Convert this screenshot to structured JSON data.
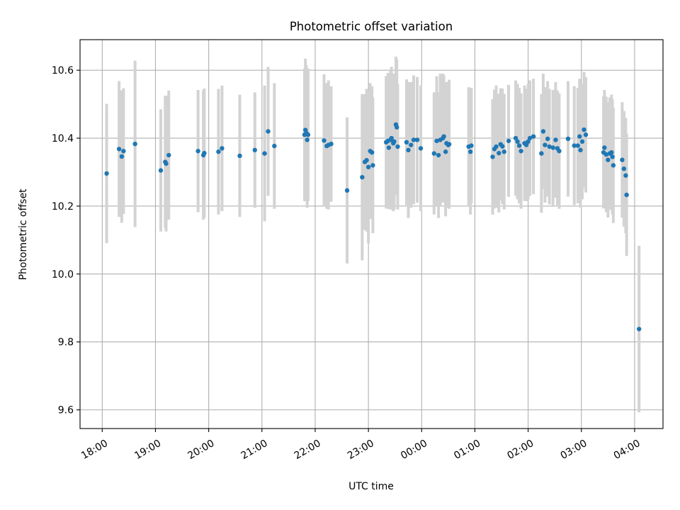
{
  "chart_data": {
    "type": "scatter",
    "title": "Photometric offset variation",
    "xlabel": "UTC time",
    "ylabel": "Photometric offset",
    "x_ticks": [
      "18:00",
      "19:00",
      "20:00",
      "21:00",
      "22:00",
      "23:00",
      "00:00",
      "01:00",
      "02:00",
      "03:00",
      "04:00"
    ],
    "y_ticks": [
      "9.6",
      "9.8",
      "10.0",
      "10.2",
      "10.4",
      "10.6"
    ],
    "xlim": [
      "17:35",
      "04:32"
    ],
    "ylim": [
      9.545,
      10.69
    ],
    "grid": true,
    "colors": {
      "points": "#1f77b4",
      "errorbars": "#d3d3d3",
      "grid": "#b0b0b0"
    },
    "series": [
      {
        "points": [
          {
            "t": "18:05",
            "y": 10.296,
            "err": 0.205
          },
          {
            "t": "18:19",
            "y": 10.368,
            "err": 0.2
          },
          {
            "t": "18:22",
            "y": 10.346,
            "err": 0.195
          },
          {
            "t": "18:24",
            "y": 10.362,
            "err": 0.185
          },
          {
            "t": "18:37",
            "y": 10.383,
            "err": 0.245
          },
          {
            "t": "19:06",
            "y": 10.305,
            "err": 0.18
          },
          {
            "t": "19:11",
            "y": 10.33,
            "err": 0.195
          },
          {
            "t": "19:12",
            "y": 10.325,
            "err": 0.2
          },
          {
            "t": "19:15",
            "y": 10.35,
            "err": 0.19
          },
          {
            "t": "19:48",
            "y": 10.362,
            "err": 0.18
          },
          {
            "t": "19:54",
            "y": 10.35,
            "err": 0.19
          },
          {
            "t": "19:55",
            "y": 10.356,
            "err": 0.19
          },
          {
            "t": "20:11",
            "y": 10.36,
            "err": 0.185
          },
          {
            "t": "20:15",
            "y": 10.37,
            "err": 0.185
          },
          {
            "t": "20:35",
            "y": 10.348,
            "err": 0.18
          },
          {
            "t": "20:52",
            "y": 10.365,
            "err": 0.17
          },
          {
            "t": "21:03",
            "y": 10.355,
            "err": 0.2
          },
          {
            "t": "21:07",
            "y": 10.42,
            "err": 0.19
          },
          {
            "t": "21:14",
            "y": 10.377,
            "err": 0.185
          },
          {
            "t": "21:48",
            "y": 10.41,
            "err": 0.195
          },
          {
            "t": "21:49",
            "y": 10.424,
            "err": 0.21
          },
          {
            "t": "21:50",
            "y": 10.415,
            "err": 0.2
          },
          {
            "t": "21:51",
            "y": 10.395,
            "err": 0.2
          },
          {
            "t": "21:52",
            "y": 10.41,
            "err": 0.195
          },
          {
            "t": "22:10",
            "y": 10.393,
            "err": 0.195
          },
          {
            "t": "22:13",
            "y": 10.377,
            "err": 0.185
          },
          {
            "t": "22:15",
            "y": 10.38,
            "err": 0.19
          },
          {
            "t": "22:18",
            "y": 10.383,
            "err": 0.17
          },
          {
            "t": "22:36",
            "y": 10.246,
            "err": 0.215
          },
          {
            "t": "22:53",
            "y": 10.285,
            "err": 0.245
          },
          {
            "t": "22:56",
            "y": 10.33,
            "err": 0.2
          },
          {
            "t": "22:58",
            "y": 10.335,
            "err": 0.21
          },
          {
            "t": "23:00",
            "y": 10.315,
            "err": 0.225
          },
          {
            "t": "23:02",
            "y": 10.362,
            "err": 0.2
          },
          {
            "t": "23:04",
            "y": 10.358,
            "err": 0.195
          },
          {
            "t": "23:05",
            "y": 10.32,
            "err": 0.2
          },
          {
            "t": "23:20",
            "y": 10.388,
            "err": 0.195
          },
          {
            "t": "23:22",
            "y": 10.392,
            "err": 0.2
          },
          {
            "t": "23:23",
            "y": 10.372,
            "err": 0.18
          },
          {
            "t": "23:25",
            "y": 10.395,
            "err": 0.205
          },
          {
            "t": "23:26",
            "y": 10.4,
            "err": 0.21
          },
          {
            "t": "23:28",
            "y": 10.385,
            "err": 0.2
          },
          {
            "t": "23:29",
            "y": 10.39,
            "err": 0.2
          },
          {
            "t": "23:31",
            "y": 10.44,
            "err": 0.2
          },
          {
            "t": "23:32",
            "y": 10.432,
            "err": 0.2
          },
          {
            "t": "23:33",
            "y": 10.375,
            "err": 0.185
          },
          {
            "t": "23:43",
            "y": 10.388,
            "err": 0.185
          },
          {
            "t": "23:45",
            "y": 10.365,
            "err": 0.2
          },
          {
            "t": "23:48",
            "y": 10.38,
            "err": 0.185
          },
          {
            "t": "23:51",
            "y": 10.395,
            "err": 0.19
          },
          {
            "t": "23:55",
            "y": 10.395,
            "err": 0.185
          },
          {
            "t": "23:59",
            "y": 10.37,
            "err": 0.185
          },
          {
            "t": "00:14",
            "y": 10.355,
            "err": 0.18
          },
          {
            "t": "00:17",
            "y": 10.392,
            "err": 0.19
          },
          {
            "t": "00:19",
            "y": 10.35,
            "err": 0.185
          },
          {
            "t": "00:21",
            "y": 10.395,
            "err": 0.195
          },
          {
            "t": "00:24",
            "y": 10.4,
            "err": 0.19
          },
          {
            "t": "00:25",
            "y": 10.405,
            "err": 0.18
          },
          {
            "t": "00:27",
            "y": 10.36,
            "err": 0.19
          },
          {
            "t": "00:28",
            "y": 10.385,
            "err": 0.18
          },
          {
            "t": "00:30",
            "y": 10.38,
            "err": 0.185
          },
          {
            "t": "00:31",
            "y": 10.382,
            "err": 0.19
          },
          {
            "t": "00:53",
            "y": 10.375,
            "err": 0.175
          },
          {
            "t": "00:55",
            "y": 10.36,
            "err": 0.185
          },
          {
            "t": "00:56",
            "y": 10.378,
            "err": 0.17
          },
          {
            "t": "01:20",
            "y": 10.345,
            "err": 0.17
          },
          {
            "t": "01:22",
            "y": 10.368,
            "err": 0.175
          },
          {
            "t": "01:24",
            "y": 10.375,
            "err": 0.18
          },
          {
            "t": "01:27",
            "y": 10.356,
            "err": 0.175
          },
          {
            "t": "01:29",
            "y": 10.382,
            "err": 0.165
          },
          {
            "t": "01:31",
            "y": 10.376,
            "err": 0.17
          },
          {
            "t": "01:33",
            "y": 10.36,
            "err": 0.17
          },
          {
            "t": "01:38",
            "y": 10.392,
            "err": 0.165
          },
          {
            "t": "01:46",
            "y": 10.4,
            "err": 0.17
          },
          {
            "t": "01:48",
            "y": 10.39,
            "err": 0.17
          },
          {
            "t": "01:50",
            "y": 10.378,
            "err": 0.17
          },
          {
            "t": "01:52",
            "y": 10.362,
            "err": 0.17
          },
          {
            "t": "01:56",
            "y": 10.385,
            "err": 0.17
          },
          {
            "t": "01:58",
            "y": 10.38,
            "err": 0.165
          },
          {
            "t": "02:00",
            "y": 10.39,
            "err": 0.17
          },
          {
            "t": "02:02",
            "y": 10.4,
            "err": 0.17
          },
          {
            "t": "02:06",
            "y": 10.405,
            "err": 0.17
          },
          {
            "t": "02:15",
            "y": 10.355,
            "err": 0.175
          },
          {
            "t": "02:17",
            "y": 10.42,
            "err": 0.17
          },
          {
            "t": "02:19",
            "y": 10.38,
            "err": 0.17
          },
          {
            "t": "02:22",
            "y": 10.398,
            "err": 0.17
          },
          {
            "t": "02:24",
            "y": 10.375,
            "err": 0.17
          },
          {
            "t": "02:28",
            "y": 10.372,
            "err": 0.17
          },
          {
            "t": "02:31",
            "y": 10.395,
            "err": 0.17
          },
          {
            "t": "02:33",
            "y": 10.37,
            "err": 0.17
          },
          {
            "t": "02:35",
            "y": 10.362,
            "err": 0.17
          },
          {
            "t": "02:45",
            "y": 10.398,
            "err": 0.17
          },
          {
            "t": "02:52",
            "y": 10.378,
            "err": 0.175
          },
          {
            "t": "02:56",
            "y": 10.378,
            "err": 0.17
          },
          {
            "t": "02:58",
            "y": 10.405,
            "err": 0.17
          },
          {
            "t": "02:59",
            "y": 10.365,
            "err": 0.17
          },
          {
            "t": "03:01",
            "y": 10.39,
            "err": 0.17
          },
          {
            "t": "03:03",
            "y": 10.425,
            "err": 0.17
          },
          {
            "t": "03:05",
            "y": 10.41,
            "err": 0.17
          },
          {
            "t": "03:25",
            "y": 10.358,
            "err": 0.165
          },
          {
            "t": "03:26",
            "y": 10.372,
            "err": 0.17
          },
          {
            "t": "03:28",
            "y": 10.352,
            "err": 0.17
          },
          {
            "t": "03:30",
            "y": 10.336,
            "err": 0.17
          },
          {
            "t": "03:32",
            "y": 10.355,
            "err": 0.165
          },
          {
            "t": "03:34",
            "y": 10.358,
            "err": 0.17
          },
          {
            "t": "03:35",
            "y": 10.345,
            "err": 0.17
          },
          {
            "t": "03:36",
            "y": 10.32,
            "err": 0.17
          },
          {
            "t": "03:46",
            "y": 10.336,
            "err": 0.17
          },
          {
            "t": "03:48",
            "y": 10.31,
            "err": 0.17
          },
          {
            "t": "03:50",
            "y": 10.29,
            "err": 0.17
          },
          {
            "t": "03:51",
            "y": 10.233,
            "err": 0.18
          },
          {
            "t": "04:05",
            "y": 9.838,
            "err": 0.245
          }
        ]
      }
    ]
  }
}
